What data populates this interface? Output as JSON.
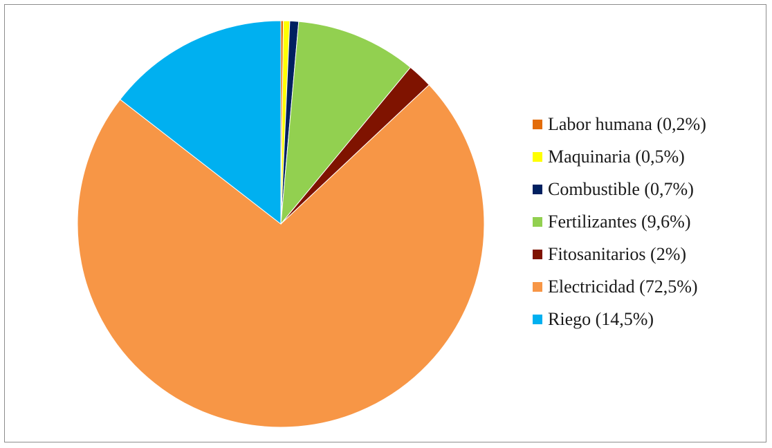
{
  "chart_data": {
    "type": "pie",
    "title": "",
    "legend_position": "right",
    "start_angle_deg": 0,
    "direction": "clockwise",
    "slices": [
      {
        "label": "Labor humana (0,2%)",
        "value": 0.2,
        "color": "#E36C09"
      },
      {
        "label": "Maquinaria (0,5%)",
        "value": 0.5,
        "color": "#FFFF00"
      },
      {
        "label": "Combustible (0,7%)",
        "value": 0.7,
        "color": "#002060"
      },
      {
        "label": "Fertilizantes (9,6%)",
        "value": 9.6,
        "color": "#92D050"
      },
      {
        "label": "Fitosanitarios (2%)",
        "value": 2.0,
        "color": "#7F1300"
      },
      {
        "label": "Electricidad (72,5%)",
        "value": 72.5,
        "color": "#F79646"
      },
      {
        "label": "Riego (14,5%)",
        "value": 14.5,
        "color": "#00B0F0"
      }
    ]
  }
}
